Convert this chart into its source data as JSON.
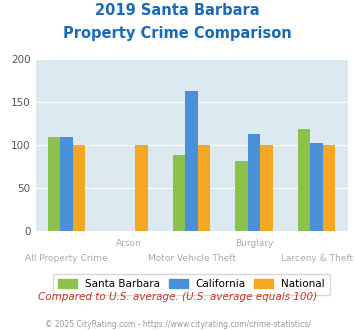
{
  "title_line1": "2019 Santa Barbara",
  "title_line2": "Property Crime Comparison",
  "categories": [
    "All Property Crime",
    "Arson",
    "Motor Vehicle Theft",
    "Burglary",
    "Larceny & Theft"
  ],
  "x_labels_top": [
    "",
    "Arson",
    "",
    "Burglary",
    ""
  ],
  "x_labels_bottom": [
    "All Property Crime",
    "",
    "Motor Vehicle Theft",
    "",
    "Larceny & Theft"
  ],
  "santa_barbara": [
    110,
    0,
    88,
    82,
    119
  ],
  "california": [
    110,
    0,
    163,
    113,
    103
  ],
  "national": [
    100,
    100,
    100,
    100,
    100
  ],
  "bar_color_sb": "#8bc34a",
  "bar_color_ca": "#4a90d9",
  "bar_color_nat": "#f5a623",
  "ylim": [
    0,
    200
  ],
  "yticks": [
    0,
    50,
    100,
    150,
    200
  ],
  "background_color": "#dce9f0",
  "title_color": "#1a6ab5",
  "xlabel_color": "#aaaaaa",
  "legend_labels": [
    "Santa Barbara",
    "California",
    "National"
  ],
  "note": "Compared to U.S. average. (U.S. average equals 100)",
  "note_color": "#c0392b",
  "copyright": "© 2025 CityRating.com - https://www.cityrating.com/crime-statistics/",
  "copyright_color": "#999999",
  "title_fontsize": 10.5,
  "note_fontsize": 7.5,
  "copyright_fontsize": 5.5,
  "legend_fontsize": 7.5,
  "bar_width": 0.2,
  "ytick_fontsize": 7.5
}
